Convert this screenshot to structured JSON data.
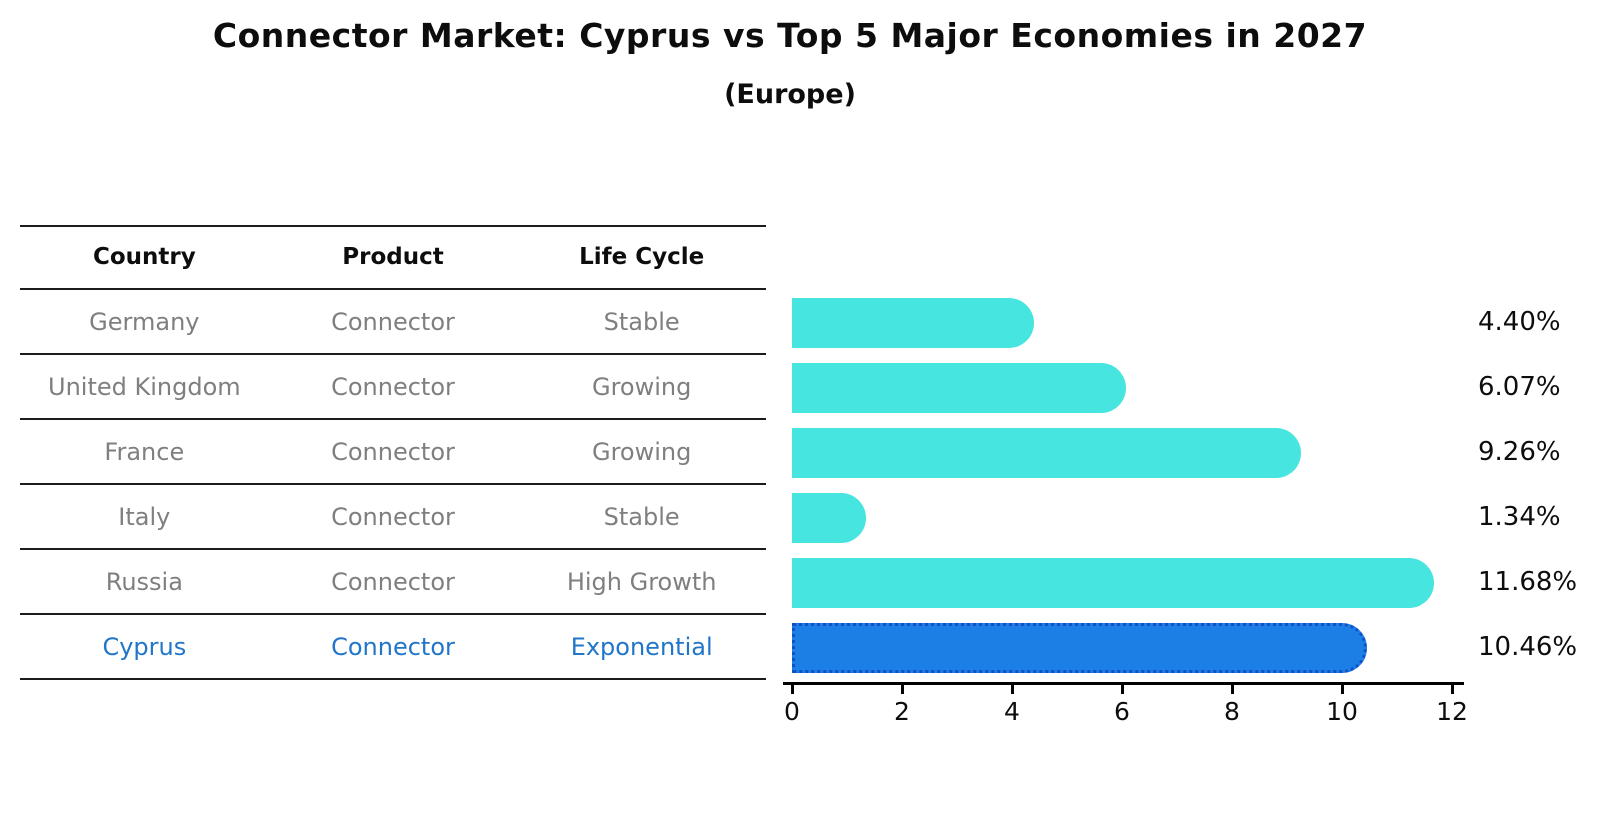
{
  "title": "Connector Market: Cyprus vs Top 5 Major Economies in 2027",
  "subtitle": "(Europe)",
  "table": {
    "headers": [
      "Country",
      "Product",
      "Life Cycle"
    ],
    "rows": [
      {
        "country": "Germany",
        "product": "Connector",
        "life_cycle": "Stable",
        "highlight": false
      },
      {
        "country": "United Kingdom",
        "product": "Connector",
        "life_cycle": "Growing",
        "highlight": false
      },
      {
        "country": "France",
        "product": "Connector",
        "life_cycle": "Growing",
        "highlight": false
      },
      {
        "country": "Italy",
        "product": "Connector",
        "life_cycle": "Stable",
        "highlight": false
      },
      {
        "country": "Russia",
        "product": "Connector",
        "life_cycle": "High Growth",
        "highlight": false
      },
      {
        "country": "Cyprus",
        "product": "Connector",
        "life_cycle": "Exponential",
        "highlight": true
      }
    ]
  },
  "chart_data": {
    "type": "bar",
    "orientation": "horizontal",
    "title": "Connector Market: Cyprus vs Top 5 Major Economies in 2027",
    "subtitle": "(Europe)",
    "categories": [
      "Germany",
      "United Kingdom",
      "France",
      "Italy",
      "Russia",
      "Cyprus"
    ],
    "values": [
      4.4,
      6.07,
      9.26,
      1.34,
      11.68,
      10.46
    ],
    "value_labels": [
      "4.40%",
      "6.07%",
      "9.26%",
      "1.34%",
      "11.68%",
      "10.46%"
    ],
    "x_ticks": [
      "0",
      "2",
      "4",
      "6",
      "8",
      "10",
      "12"
    ],
    "xlim": [
      0,
      12
    ],
    "grid": false,
    "legend": "none",
    "highlight_index": 5,
    "bar_color": "#46e5e0",
    "highlight_bar_color": "#1b7fe5",
    "highlight_border_color": "#1250c8",
    "highlight_text_color": "#2176c9",
    "row_text_color": "#7f7f7f"
  }
}
